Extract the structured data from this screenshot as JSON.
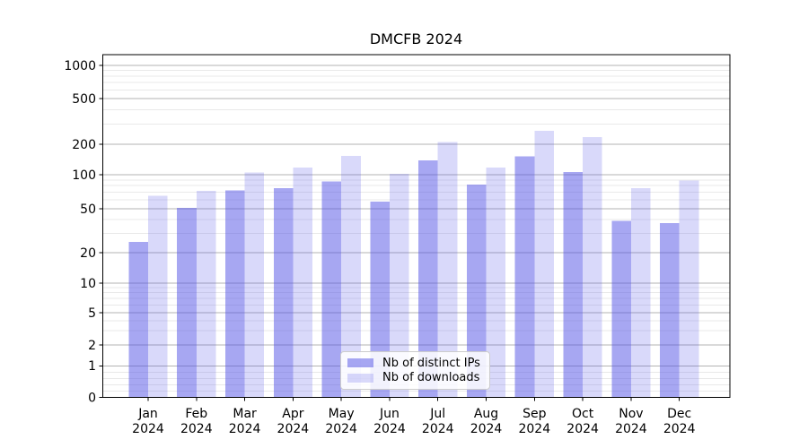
{
  "figure": {
    "title": "DMCFB 2024"
  },
  "chart_data": {
    "type": "bar",
    "title": "DMCFB 2024",
    "categories": [
      "Jan 2024",
      "Feb 2024",
      "Mar 2024",
      "Apr 2024",
      "May 2024",
      "Jun 2024",
      "Jul 2024",
      "Aug 2024",
      "Sep 2024",
      "Oct 2024",
      "Nov 2024",
      "Dec 2024"
    ],
    "series": [
      {
        "name": "Nb of distinct IPs",
        "color": "rgba(80,80,230,0.50)",
        "values": [
          25,
          51,
          73,
          76,
          87,
          58,
          139,
          82,
          152,
          106,
          39,
          37
        ]
      },
      {
        "name": "Nb of downloads",
        "color": "rgba(80,80,230,0.22)",
        "values": [
          65,
          72,
          105,
          118,
          153,
          102,
          210,
          118,
          263,
          231,
          76,
          89
        ]
      }
    ],
    "xlabel": "",
    "ylabel": "",
    "yscale": "symlog",
    "ylim": [
      0,
      1300
    ],
    "y_major_ticks": [
      0,
      1,
      2,
      5,
      10,
      20,
      50,
      100,
      200,
      500,
      1000
    ],
    "y_minor_ticks": [
      0.2,
      0.4,
      0.6,
      0.8,
      3,
      4,
      6,
      7,
      8,
      9,
      30,
      40,
      60,
      70,
      80,
      90,
      300,
      400,
      600,
      700,
      800,
      900
    ],
    "grid": "major-and-minor",
    "legend_position": "lower-center",
    "colors": {
      "major_grid": "#b3b3b3",
      "minor_grid": "#e9e9e9",
      "spine": "#000000",
      "text": "#000000"
    }
  }
}
